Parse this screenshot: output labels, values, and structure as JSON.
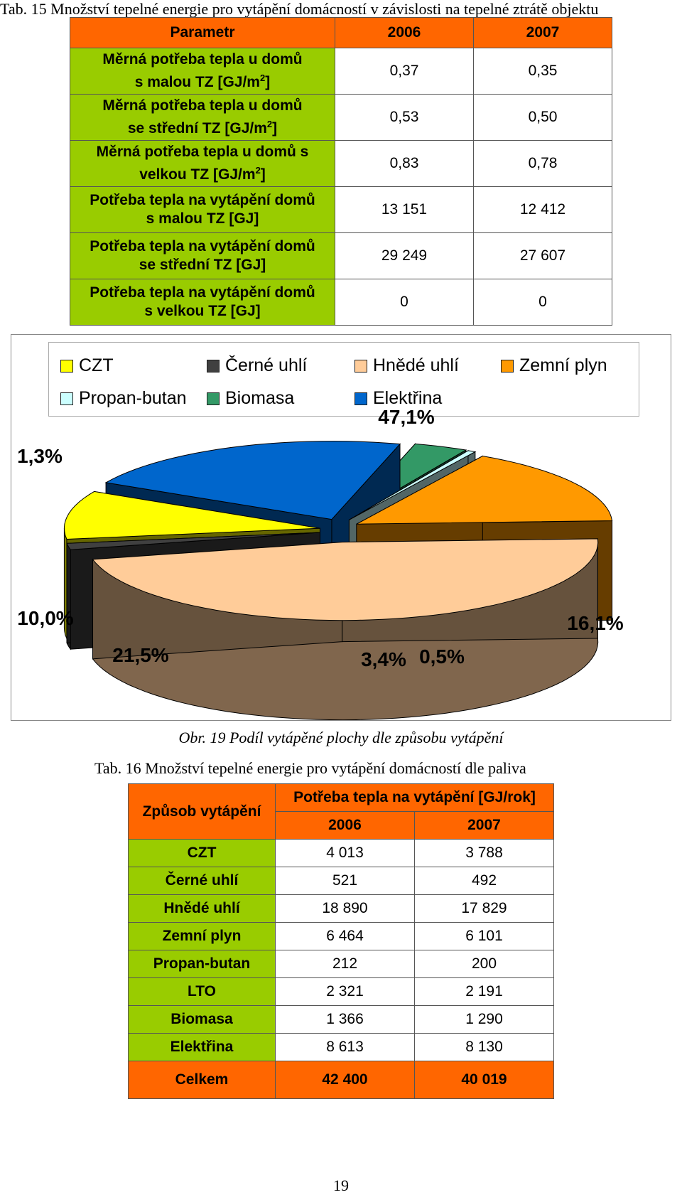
{
  "table15": {
    "caption": "Tab. 15 Množství tepelné energie pro vytápění domácností v závislosti na tepelné ztrátě objektu",
    "headers": [
      "Parametr",
      "2006",
      "2007"
    ],
    "rows": [
      {
        "l1": "Měrná potřeba tepla u domů",
        "l2": "s malou TZ [GJ/m",
        "sup": "2",
        "end": "]",
        "v2006": "0,37",
        "v2007": "0,35"
      },
      {
        "l1": "Měrná potřeba tepla u domů",
        "l2": "se střední TZ [GJ/m",
        "sup": "2",
        "end": "]",
        "v2006": "0,53",
        "v2007": "0,50"
      },
      {
        "l1": "Měrná potřeba tepla u domů s",
        "l2": "velkou TZ [GJ/m",
        "sup": "2",
        "end": "]",
        "v2006": "0,83",
        "v2007": "0,78"
      },
      {
        "l1": "Potřeba tepla na vytápění domů",
        "l2": "s malou TZ [GJ]",
        "sup": "",
        "end": "",
        "v2006": "13 151",
        "v2007": "12 412"
      },
      {
        "l1": "Potřeba tepla na vytápění domů",
        "l2": "se střední TZ [GJ]",
        "sup": "",
        "end": "",
        "v2006": "29 249",
        "v2007": "27 607"
      },
      {
        "l1": "Potřeba tepla na vytápění domů",
        "l2": "s velkou TZ [GJ]",
        "sup": "",
        "end": "",
        "v2006": "0",
        "v2007": "0"
      }
    ]
  },
  "figure": {
    "caption": "Obr. 19 Podíl vytápěné plochy dle způsobu vytápění",
    "legend": [
      {
        "name": "CZT",
        "color": "#ffff00"
      },
      {
        "name": "Černé uhlí",
        "color": "#404040"
      },
      {
        "name": "Hnědé uhlí",
        "color": "#ffcc99"
      },
      {
        "name": "Zemní plyn",
        "color": "#ff9900"
      },
      {
        "name": "Propan-butan",
        "color": "#ccffff"
      },
      {
        "name": "Biomasa",
        "color": "#339966"
      },
      {
        "name": "Elektřina",
        "color": "#0066cc"
      }
    ]
  },
  "chart_data": {
    "type": "pie",
    "labels": [
      "CZT",
      "Černé uhlí",
      "Hnědé uhlí",
      "Zemní plyn",
      "Propan-butan",
      "Biomasa",
      "Elektřina"
    ],
    "values": [
      10.0,
      1.3,
      47.1,
      16.1,
      0.5,
      3.4,
      21.5
    ],
    "value_labels": [
      "10,0%",
      "1,3%",
      "47,1%",
      "16,1%",
      "0,5%",
      "3,4%",
      "21,5%"
    ],
    "colors": [
      "#ffff00",
      "#404040",
      "#ffcc99",
      "#ff9900",
      "#ccffff",
      "#339966",
      "#0066cc"
    ],
    "exploded": true,
    "three_d": true,
    "legend_position": "top"
  },
  "table16": {
    "caption": "Tab. 16 Množství tepelné energie pro vytápění domácností dle paliva",
    "header_method": "Způsob vytápění",
    "header_need": "Potřeba tepla na vytápění [GJ/rok]",
    "years": [
      "2006",
      "2007"
    ],
    "rows": [
      {
        "name": "CZT",
        "v2006": "4 013",
        "v2007": "3 788"
      },
      {
        "name": "Černé uhlí",
        "v2006": "521",
        "v2007": "492"
      },
      {
        "name": "Hnědé uhlí",
        "v2006": "18 890",
        "v2007": "17 829"
      },
      {
        "name": "Zemní plyn",
        "v2006": "6 464",
        "v2007": "6 101"
      },
      {
        "name": "Propan-butan",
        "v2006": "212",
        "v2007": "200"
      },
      {
        "name": "LTO",
        "v2006": "2 321",
        "v2007": "2 191"
      },
      {
        "name": "Biomasa",
        "v2006": "1 366",
        "v2007": "1 290"
      },
      {
        "name": "Elektřina",
        "v2006": "8 613",
        "v2007": "8 130"
      }
    ],
    "total": {
      "name": "Celkem",
      "v2006": "42 400",
      "v2007": "40 019"
    }
  },
  "page_number": "19"
}
